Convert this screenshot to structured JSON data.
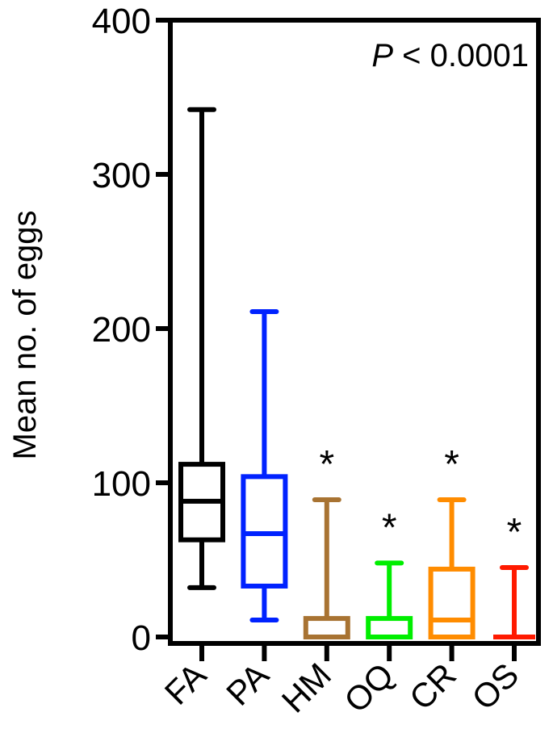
{
  "chart_data": {
    "type": "box",
    "title": "",
    "xlabel": "",
    "ylabel": "Mean no. of eggs",
    "ylim": [
      0,
      400
    ],
    "yticks": [
      0,
      100,
      200,
      300,
      400
    ],
    "grid": false,
    "legend": null,
    "annotation": {
      "italic": "P",
      "text": " < 0.0001"
    },
    "categories": [
      "FA",
      "PA",
      "HM",
      "OQ",
      "CR",
      "OS"
    ],
    "series": [
      {
        "name": "FA",
        "color": "#000000",
        "min": 32,
        "q1": 63,
        "median": 88,
        "q3": 112,
        "max": 342,
        "significant": false
      },
      {
        "name": "PA",
        "color": "#0022FF",
        "min": 11,
        "q1": 33,
        "median": 67,
        "q3": 104,
        "max": 211,
        "significant": false
      },
      {
        "name": "HM",
        "color": "#A87332",
        "min": 0,
        "q1": 0,
        "median": 0,
        "q3": 12,
        "max": 89,
        "significant": true
      },
      {
        "name": "OQ",
        "color": "#00EE00",
        "min": 0,
        "q1": 0,
        "median": 0,
        "q3": 12,
        "max": 48,
        "significant": true
      },
      {
        "name": "CR",
        "color": "#FF8C00",
        "min": 0,
        "q1": 0,
        "median": 11,
        "q3": 44,
        "max": 89,
        "significant": true
      },
      {
        "name": "OS",
        "color": "#FF1A00",
        "min": 0,
        "q1": 0,
        "median": 0,
        "q3": 0,
        "max": 45,
        "significant": true
      }
    ],
    "significance_marker": "*"
  }
}
